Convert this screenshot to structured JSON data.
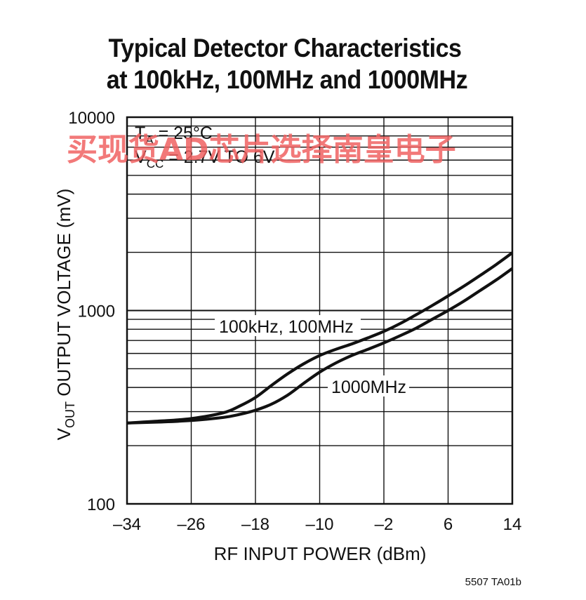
{
  "chart_data": {
    "type": "line",
    "title": [
      "Typical Detector Characteristics",
      "at 100kHz, 100MHz and 1000MHz"
    ],
    "xlabel": "RF INPUT POWER (dBm)",
    "ylabel": {
      "v": "V",
      "sub": "OUT",
      "rest": " OUTPUT VOLTAGE (mV)"
    },
    "xlim": [
      -34,
      14
    ],
    "ylim": [
      100,
      10000
    ],
    "yscale": "log",
    "x_ticks": [
      -34,
      -26,
      -18,
      -10,
      -2,
      6,
      14
    ],
    "x_tick_labels": [
      "–34",
      "–26",
      "–18",
      "–10",
      "–2",
      "6",
      "14"
    ],
    "y_tick_labels": [
      {
        "value": 10000,
        "label": "10000"
      },
      {
        "value": 1000,
        "label": "1000"
      },
      {
        "value": 100,
        "label": "100"
      }
    ],
    "grid": true,
    "series": [
      {
        "name": "100kHz, 100MHz",
        "x": [
          -34,
          -30,
          -26,
          -22,
          -20,
          -18,
          -16,
          -14,
          -12,
          -10,
          -8,
          -6,
          -4,
          -2,
          0,
          2,
          4,
          6,
          8,
          10,
          12,
          14
        ],
        "y": [
          262,
          268,
          276,
          296,
          320,
          355,
          410,
          470,
          530,
          585,
          630,
          672,
          722,
          780,
          855,
          950,
          1060,
          1190,
          1340,
          1520,
          1730,
          1990
        ]
      },
      {
        "name": "1000MHz",
        "x": [
          -34,
          -30,
          -26,
          -22,
          -20,
          -18,
          -16,
          -14,
          -12,
          -10,
          -8,
          -6,
          -4,
          -2,
          0,
          2,
          4,
          6,
          8,
          10,
          12,
          14
        ],
        "y": [
          262,
          265,
          270,
          280,
          290,
          305,
          328,
          365,
          420,
          480,
          535,
          585,
          630,
          680,
          740,
          810,
          900,
          1000,
          1120,
          1270,
          1440,
          1650
        ]
      }
    ],
    "annotations": [
      {
        "name": "ta",
        "v": "T",
        "sub": "A",
        "rest": " = 25°C"
      },
      {
        "name": "vcc",
        "v": "V",
        "sub": "CC",
        "rest": " = 2.7V TO 6V"
      }
    ]
  },
  "watermark": "买现货AD芯片选择南皇电子",
  "figure_id": "5507 TA01b"
}
